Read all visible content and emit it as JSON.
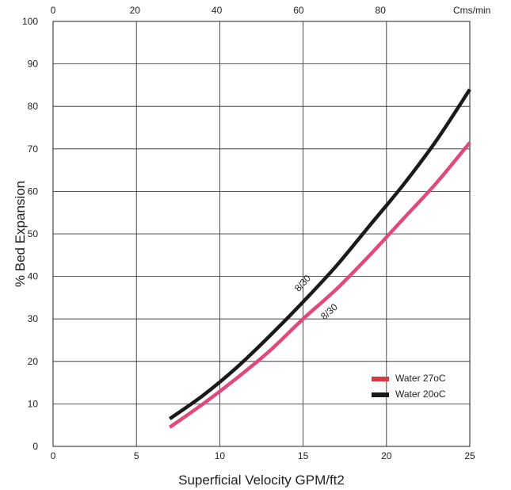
{
  "chart_data": {
    "type": "line",
    "title": "",
    "xlabel": "Superficial Velocity GPM/ft2",
    "ylabel": "% Bed Expansion",
    "xlim": [
      0,
      25
    ],
    "ylim": [
      0,
      100
    ],
    "x_ticks": [
      "0",
      "5",
      "10",
      "15",
      "20",
      "25"
    ],
    "y_ticks": [
      "0",
      "10",
      "20",
      "30",
      "40",
      "50",
      "60",
      "70",
      "80",
      "90",
      "100"
    ],
    "top_axis": {
      "label": "Cms/min",
      "ticks": [
        "0",
        "20",
        "40",
        "60",
        "80"
      ],
      "tick_positions_x": [
        0,
        4.91,
        9.82,
        14.73,
        19.64
      ]
    },
    "grid": true,
    "legend_placement": "lower-right",
    "series": [
      {
        "name": "Water 27oC",
        "color": "#e04a7a",
        "legend_color": "#d9383f",
        "curve_label": "8/30",
        "x": [
          7,
          9,
          11,
          13,
          15,
          17,
          19,
          21,
          23,
          25
        ],
        "y": [
          4.5,
          10,
          16,
          22.5,
          30,
          37,
          45,
          53.5,
          62,
          71.5
        ]
      },
      {
        "name": "Water 20oC",
        "color": "#1a1a1a",
        "legend_color": "#1a1a1a",
        "curve_label": "8/30",
        "x": [
          7,
          9,
          11,
          13,
          15,
          17,
          19,
          21,
          23,
          25
        ],
        "y": [
          6.5,
          12,
          18.5,
          26,
          34,
          42.5,
          52,
          61.5,
          72,
          84
        ]
      }
    ]
  }
}
